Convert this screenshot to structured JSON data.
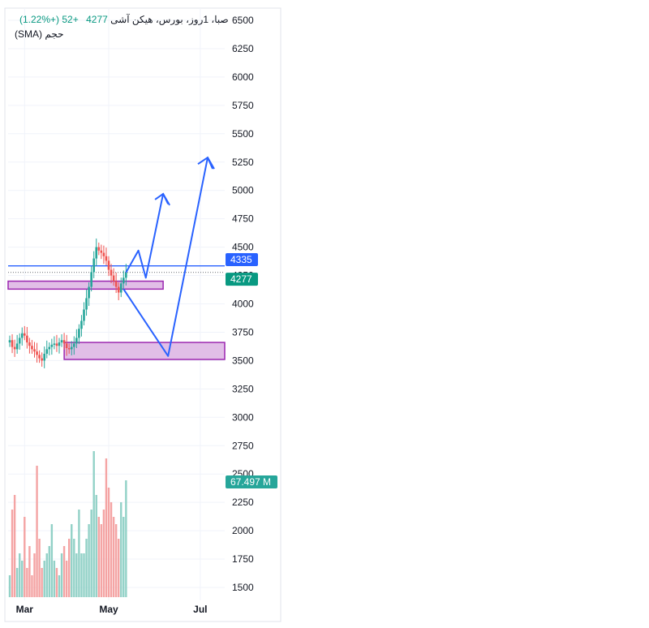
{
  "legend": {
    "symbol": "صبا، 1روز، بورس، هیکن آشی",
    "last": "4277",
    "change": "+52 (+1.22%)",
    "volume_label": "حجم (SMA)"
  },
  "price_tags": {
    "line_level": "4335",
    "last_price": "4277",
    "volume": "67.497 M"
  },
  "colors": {
    "up": "#26a69a",
    "down": "#ef5350",
    "up_volume": "#92d1c7",
    "down_volume": "#f4a4a4",
    "projection": "#2962ff",
    "box_fill": "#e1bee7",
    "box_border": "#9c27b0",
    "line_tag": "#2962ff",
    "last_tag": "#089981",
    "volume_tag": "#26a69a"
  },
  "chart_data": {
    "type": "candlestick",
    "yticks": [
      6500,
      6250,
      6000,
      5750,
      5500,
      5250,
      5000,
      4750,
      4500,
      4250,
      4000,
      3750,
      3500,
      3250,
      3000,
      2750,
      2500,
      2250,
      2000,
      1750,
      1500
    ],
    "yticks_display": [
      "6500",
      "6250",
      "6000",
      "5750",
      "5500",
      "5250",
      "5000",
      "4750",
      "4500",
      "4250",
      "4000",
      "3750",
      "3500",
      "3250",
      "3000",
      "2750",
      "2500",
      "2250",
      "2000",
      "1750",
      "1500"
    ],
    "xticks": [
      "Mar",
      "May",
      "Jul"
    ],
    "ylim": [
      1400,
      6560
    ],
    "horizontal_line": 4335,
    "last_price": 4277,
    "zones": [
      {
        "from": 4130,
        "to": 4200
      },
      {
        "from": 3510,
        "to": 3660
      }
    ],
    "candles_close": [
      3680,
      3620,
      3600,
      3650,
      3700,
      3740,
      3720,
      3660,
      3630,
      3600,
      3580,
      3550,
      3520,
      3500,
      3560,
      3600,
      3620,
      3640,
      3650,
      3630,
      3660,
      3680,
      3650,
      3610,
      3600,
      3620,
      3650,
      3700,
      3780,
      3850,
      3950,
      4050,
      4150,
      4280,
      4400,
      4500,
      4470,
      4450,
      4420,
      4380,
      4300,
      4250,
      4200,
      4150,
      4100,
      4180,
      4230,
      4277
    ],
    "volume_relative": [
      0.15,
      0.6,
      0.7,
      0.2,
      0.3,
      0.25,
      0.55,
      0.2,
      0.35,
      0.15,
      0.3,
      0.9,
      0.4,
      0.2,
      0.25,
      0.3,
      0.35,
      0.5,
      0.25,
      0.2,
      0.15,
      0.3,
      0.35,
      0.25,
      0.4,
      0.5,
      0.4,
      0.3,
      0.6,
      0.3,
      0.3,
      0.4,
      0.5,
      0.6,
      1.0,
      0.7,
      0.55,
      0.5,
      0.6,
      0.95,
      0.75,
      0.65,
      0.55,
      0.5,
      0.4,
      0.65,
      0.55,
      0.8
    ],
    "projection_path": [
      {
        "t": 47,
        "p": 4277
      },
      {
        "t": 52,
        "p": 4470
      },
      {
        "t": 55,
        "p": 4230
      },
      {
        "t": 62,
        "p": 4970
      },
      {
        "t": 64,
        "p": 4880
      }
    ],
    "projection_path2": [
      {
        "t": 46,
        "p": 4130
      },
      {
        "t": 64,
        "p": 3540
      },
      {
        "t": 80,
        "p": 5290
      },
      {
        "t": 82,
        "p": 5190
      }
    ]
  }
}
